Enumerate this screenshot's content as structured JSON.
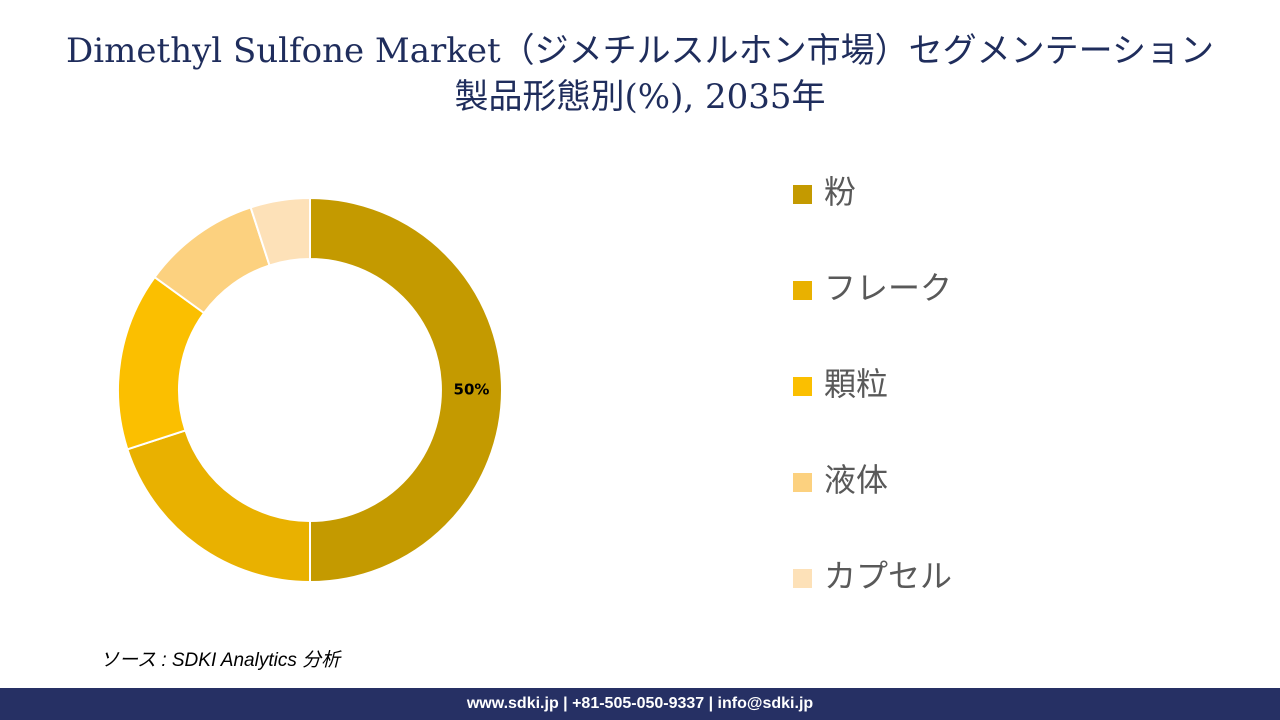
{
  "chart_data": {
    "type": "donut",
    "title": [
      "Dimethyl Sulfone Market（ジメチルスルホン市場）セグメンテーション",
      "製品形態別(%), 2035年"
    ],
    "categories": [
      "粉",
      "フレーク",
      "顆粒",
      "液体",
      "カプセル"
    ],
    "values": [
      50,
      20,
      15,
      10,
      5
    ],
    "value_labels": [
      "50%",
      null,
      null,
      null,
      null
    ],
    "colors": [
      "#c49a00",
      "#e9b100",
      "#fbbf00",
      "#fcd17f",
      "#fde1b8"
    ],
    "legend": "right"
  },
  "source": "ソース : SDKI Analytics 分析",
  "footer": "www.sdki.jp | +81-505-050-9337 | info@sdki.jp"
}
